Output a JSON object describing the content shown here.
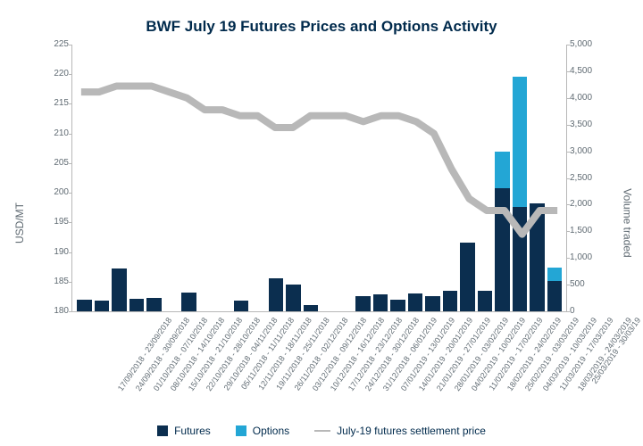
{
  "title": "BWF July 19 Futures Prices and Options Activity",
  "title_fontsize": 17,
  "colors": {
    "futures": "#0b2e4f",
    "options": "#23a6d5",
    "line": "#b8b8b8",
    "text": "#5f6a72",
    "title": "#002a4c",
    "axis": "#b8b8b8",
    "background": "#ffffff"
  },
  "y_left": {
    "label": "USD/MT",
    "min": 180,
    "max": 225,
    "step": 5,
    "fontsize": 12,
    "tick_fontsize": 10
  },
  "y_right": {
    "label": "Volume traded",
    "min": 0,
    "max": 5000,
    "step": 500,
    "fontsize": 12,
    "tick_fontsize": 10
  },
  "categories": [
    "17/09/2018 - 23/09/2018",
    "24/09/2018 - 30/09/2018",
    "01/10/2018 - 07/10/2018",
    "08/10/2018 - 14/10/2018",
    "15/10/2018 - 21/10/2018",
    "22/10/2018 - 28/10/2018",
    "29/10/2018 - 04/11/2018",
    "05/11/2018 - 11/11/2018",
    "12/11/2018 - 18/11/2018",
    "19/11/2018 - 25/11/2018",
    "26/11/2018 - 02/12/2018",
    "03/12/2018 - 09/12/2018",
    "10/12/2018 - 16/12/2018",
    "17/12/2018 - 23/12/2018",
    "24/12/2018 - 30/12/2018",
    "31/12/2018 - 06/01/2019",
    "07/01/2019 - 13/01/2019",
    "14/01/2019 - 20/01/2019",
    "21/01/2019 - 27/01/2019",
    "28/01/2019 - 03/02/2019",
    "04/02/2019 - 10/02/2019",
    "11/02/2019 - 17/02/2019",
    "18/02/2019 - 24/02/2019",
    "25/02/2019 - 03/03/2019",
    "04/03/2019 - 10/03/2019",
    "11/03/2019 - 17/03/2019",
    "18/03/2019 - 24/03/2019",
    "25/03/2019 - 30/03/19"
  ],
  "xaxis": {
    "tick_fontsize": 9,
    "rotation_deg": -55
  },
  "futures": [
    220,
    200,
    800,
    240,
    250,
    0,
    350,
    0,
    0,
    200,
    0,
    620,
    500,
    120,
    0,
    0,
    280,
    310,
    220,
    330,
    280,
    390,
    1290,
    380,
    2300,
    1960,
    2020,
    570
  ],
  "options": [
    0,
    0,
    0,
    0,
    0,
    0,
    0,
    0,
    0,
    0,
    0,
    0,
    0,
    0,
    0,
    0,
    0,
    0,
    0,
    0,
    0,
    0,
    0,
    0,
    700,
    2430,
    0,
    250
  ],
  "settlement_price": [
    217,
    217,
    218,
    218,
    218,
    217,
    216,
    214,
    214,
    213,
    213,
    211,
    211,
    213,
    213,
    213,
    212,
    213,
    213,
    212,
    210,
    204,
    199,
    197,
    197,
    193,
    197,
    197
  ],
  "legend": {
    "futures": "Futures",
    "options": "Options",
    "line": "July-19 futures settlement price"
  },
  "chart_type": "stacked-bar+line-dual-axis"
}
